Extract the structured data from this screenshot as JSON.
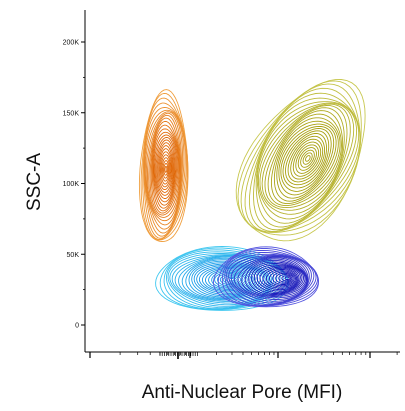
{
  "chart_data": {
    "type": "contour",
    "xlabel": "Anti-Nuclear Pore (MFI)",
    "ylabel": "SSC-A",
    "x_scale": "log",
    "x_tick_labels": [],
    "y_ticks": [
      {
        "value": 0,
        "label": "0"
      },
      {
        "value": 50000,
        "label": "50K"
      },
      {
        "value": 100000,
        "label": "100K"
      },
      {
        "value": 150000,
        "label": "150K"
      },
      {
        "value": 200000,
        "label": "200K"
      }
    ],
    "ylim": [
      -20000,
      220000
    ],
    "grid": false,
    "legend": "none",
    "populations": [
      {
        "color_outer": "#f0a040",
        "color_inner": "#e06808",
        "y_center": 110000,
        "y_range": [
          60000,
          165000
        ]
      },
      {
        "color_outer": "#c8c850",
        "color_inner": "#a8a010",
        "y_center": 115000,
        "y_range": [
          55000,
          178000
        ]
      },
      {
        "color_outer": "#40c8f0",
        "color_inner": "#1898e8",
        "y_center": 32000,
        "y_range": [
          11000,
          56000
        ]
      },
      {
        "color_outer": "#5858e0",
        "color_inner": "#1818b8",
        "y_center": 33000,
        "y_range": [
          14000,
          54000
        ]
      }
    ]
  }
}
